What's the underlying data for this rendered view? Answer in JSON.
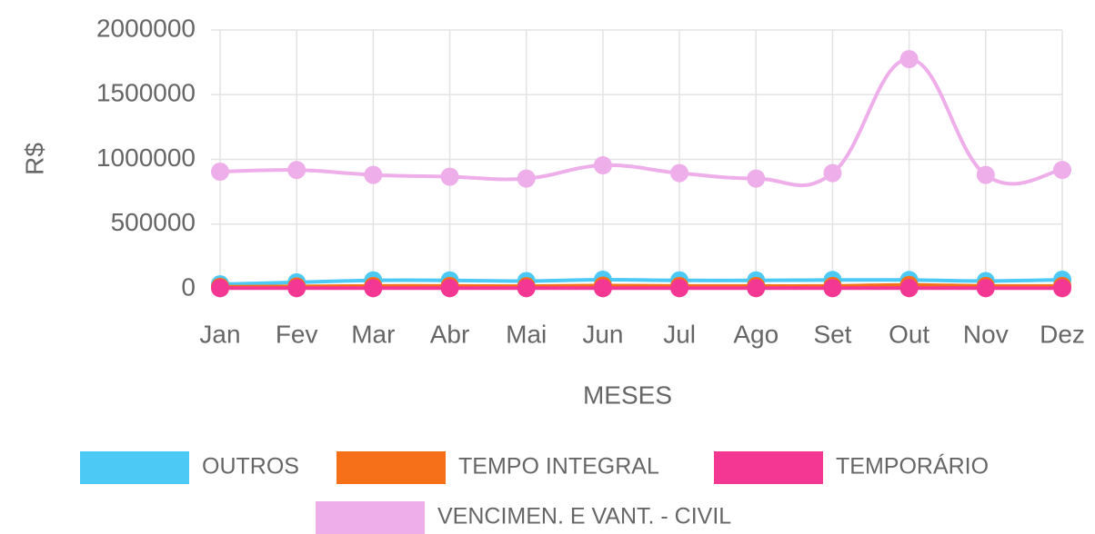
{
  "chart_data": {
    "type": "line",
    "y_label": "R$",
    "x_label": "MESES",
    "categories": [
      "Jan",
      "Fev",
      "Mar",
      "Abr",
      "Mai",
      "Jun",
      "Jul",
      "Ago",
      "Set",
      "Out",
      "Nov",
      "Dez"
    ],
    "series": [
      {
        "name": "OUTROS",
        "color": "#4dc9f6",
        "values": [
          35000,
          50000,
          65000,
          65000,
          60000,
          70000,
          65000,
          65000,
          68000,
          68000,
          60000,
          70000
        ]
      },
      {
        "name": "TEMPO INTEGRAL",
        "color": "#f67019",
        "values": [
          15000,
          18000,
          22000,
          22000,
          20000,
          25000,
          22000,
          22000,
          22000,
          30000,
          22000,
          22000
        ]
      },
      {
        "name": "TEMPORÁRIO",
        "color": "#f53794",
        "values": [
          5000,
          5000,
          5000,
          5000,
          5000,
          5000,
          5000,
          5000,
          5000,
          5000,
          5000,
          5000
        ]
      },
      {
        "name": "VENCIMEN. E VANT. - CIVIL",
        "color": "#eeaeea",
        "values": [
          905000,
          918000,
          880000,
          866000,
          852000,
          954000,
          894000,
          852000,
          894000,
          1775000,
          880000,
          918000
        ]
      }
    ],
    "ylim": [
      0,
      2000000
    ],
    "yticks": [
      0,
      500000,
      1000000,
      1500000,
      2000000
    ],
    "grid": true
  }
}
